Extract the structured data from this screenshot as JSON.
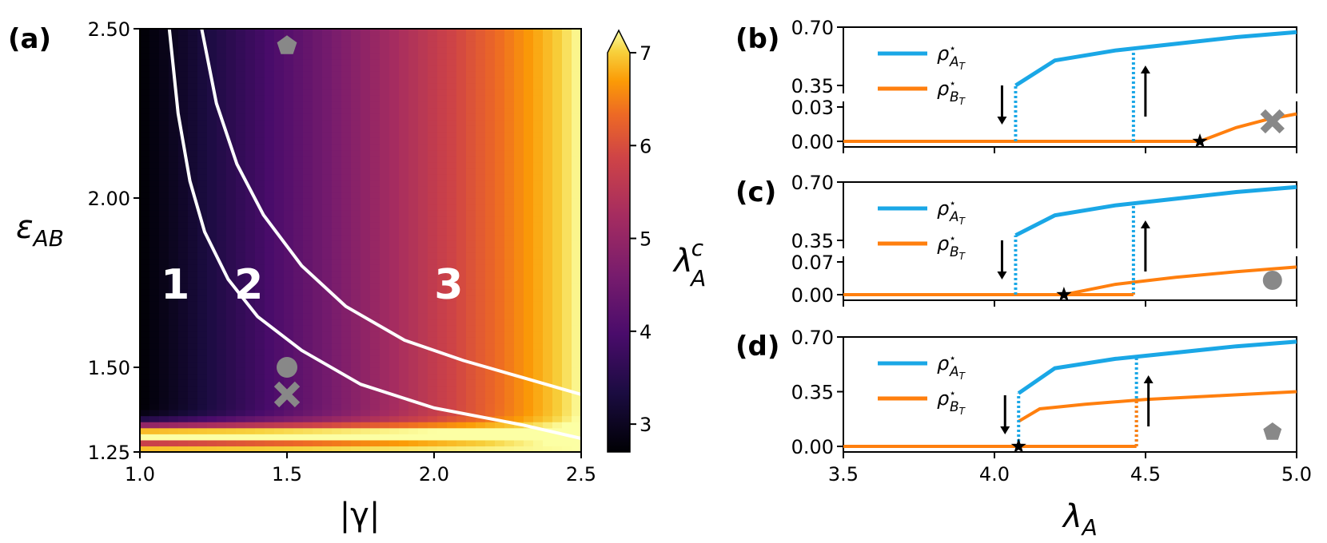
{
  "panel_labels": {
    "a": "(a)",
    "b": "(b)",
    "c": "(c)",
    "d": "(d)"
  },
  "chart_data": [
    {
      "panel": "(a)",
      "type": "heatmap",
      "xlabel": "|γ|",
      "ylabel": "ε",
      "ylabel_sub": "AB",
      "colorbar_label": "λ",
      "colorbar_label_sup": "c",
      "colorbar_label_sub": "A",
      "xlim": [
        1.0,
        2.5
      ],
      "ylim": [
        1.25,
        2.5
      ],
      "x_ticks": [
        "1.0",
        "1.5",
        "2.0",
        "2.5"
      ],
      "y_ticks": [
        "1.25",
        "1.50",
        "2.00",
        "2.50"
      ],
      "colorbar_range": [
        2.7,
        7.0
      ],
      "colorbar_ticks": [
        "3",
        "4",
        "5",
        "6",
        "7"
      ],
      "colormap": "inferno",
      "region_labels": [
        {
          "text": "1",
          "x": 1.12,
          "y": 1.75
        },
        {
          "text": "2",
          "x": 1.37,
          "y": 1.75
        },
        {
          "text": "3",
          "x": 2.05,
          "y": 1.75
        }
      ],
      "boundary_curves": [
        {
          "x": [
            1.1,
            1.13,
            1.17,
            1.22,
            1.3,
            1.4,
            1.55,
            1.75,
            2.0,
            2.3,
            2.5
          ],
          "y": [
            2.5,
            2.25,
            2.05,
            1.9,
            1.76,
            1.65,
            1.55,
            1.45,
            1.38,
            1.33,
            1.29
          ]
        },
        {
          "x": [
            1.21,
            1.26,
            1.33,
            1.42,
            1.55,
            1.7,
            1.9,
            2.1,
            2.3,
            2.5
          ],
          "y": [
            2.5,
            2.28,
            2.1,
            1.95,
            1.8,
            1.68,
            1.58,
            1.52,
            1.47,
            1.42
          ]
        }
      ],
      "markers": [
        {
          "shape": "pentagon",
          "x": 1.5,
          "y": 2.45
        },
        {
          "shape": "circle",
          "x": 1.5,
          "y": 1.5
        },
        {
          "shape": "cross",
          "x": 1.5,
          "y": 1.42
        }
      ],
      "color_model": "λ_A^c ≈ 2.7 + 4.3·(|γ|−1)/1.5, high (≈7) near ε_AB ≈ 1.30"
    },
    {
      "panel": "(b)",
      "type": "line",
      "xlim": [
        3.5,
        5.0
      ],
      "y_ticks": [
        "0.00",
        "0.03",
        "0.35",
        "0.70"
      ],
      "legend": [
        {
          "name": "ρ",
          "sub": "A",
          "subsub": "T",
          "color": "#1aa7e6"
        },
        {
          "name": "ρ",
          "sub": "B",
          "subsub": "T",
          "color": "#ff7f0e"
        }
      ],
      "series": [
        {
          "name": "A",
          "x": [
            4.07,
            4.2,
            4.4,
            4.6,
            4.8,
            5.0
          ],
          "y": [
            0.35,
            0.5,
            0.56,
            0.6,
            0.64,
            0.67
          ]
        },
        {
          "name": "B",
          "x": [
            3.5,
            4.68,
            4.8,
            4.9,
            5.0
          ],
          "y": [
            0.0,
            0.0,
            0.012,
            0.019,
            0.024
          ]
        }
      ],
      "jumps": [
        {
          "x": 4.07,
          "arrow": "down"
        },
        {
          "x": 4.46,
          "arrow": "up"
        }
      ],
      "star_x": 4.68,
      "marker": "cross"
    },
    {
      "panel": "(c)",
      "type": "line",
      "xlim": [
        3.5,
        5.0
      ],
      "y_ticks": [
        "0.00",
        "0.07",
        "0.35",
        "0.70"
      ],
      "legend": [
        {
          "name": "ρ",
          "sub": "A",
          "subsub": "T",
          "color": "#1aa7e6"
        },
        {
          "name": "ρ",
          "sub": "B",
          "subsub": "T",
          "color": "#ff7f0e"
        }
      ],
      "series": [
        {
          "name": "A",
          "x": [
            4.07,
            4.2,
            4.4,
            4.6,
            4.8,
            5.0
          ],
          "y": [
            0.38,
            0.5,
            0.56,
            0.6,
            0.64,
            0.67
          ]
        },
        {
          "name": "B",
          "x": [
            3.5,
            4.23,
            4.4,
            4.6,
            4.8,
            5.0
          ],
          "y": [
            0.0,
            0.0,
            0.022,
            0.037,
            0.049,
            0.059
          ]
        }
      ],
      "jumps": [
        {
          "x": 4.07,
          "arrow": "down"
        },
        {
          "x": 4.46,
          "arrow": "up"
        }
      ],
      "star_x": 4.23,
      "marker": "circle"
    },
    {
      "panel": "(d)",
      "type": "line",
      "xlim": [
        3.5,
        5.0
      ],
      "ylim": [
        0.0,
        0.7
      ],
      "x_ticks": [
        "3.5",
        "4.0",
        "4.5",
        "5.0"
      ],
      "y_ticks": [
        "0.00",
        "0.35",
        "0.70"
      ],
      "xlabel": "λ",
      "xlabel_sub": "A",
      "legend": [
        {
          "name": "ρ",
          "sub": "A",
          "subsub": "T",
          "color": "#1aa7e6"
        },
        {
          "name": "ρ",
          "sub": "B",
          "subsub": "T",
          "color": "#ff7f0e"
        }
      ],
      "series": [
        {
          "name": "A",
          "x": [
            4.08,
            4.2,
            4.4,
            4.6,
            4.8,
            5.0
          ],
          "y": [
            0.34,
            0.5,
            0.56,
            0.6,
            0.64,
            0.67
          ]
        },
        {
          "name": "B",
          "x": [
            4.08,
            4.15,
            4.3,
            4.5,
            4.75,
            5.0
          ],
          "y": [
            0.16,
            0.24,
            0.27,
            0.3,
            0.325,
            0.35
          ]
        }
      ],
      "jumps": [
        {
          "x": 4.08,
          "arrow": "down"
        },
        {
          "x": 4.47,
          "arrow": "up"
        }
      ],
      "star_x": 4.08,
      "marker": "pentagon"
    }
  ]
}
